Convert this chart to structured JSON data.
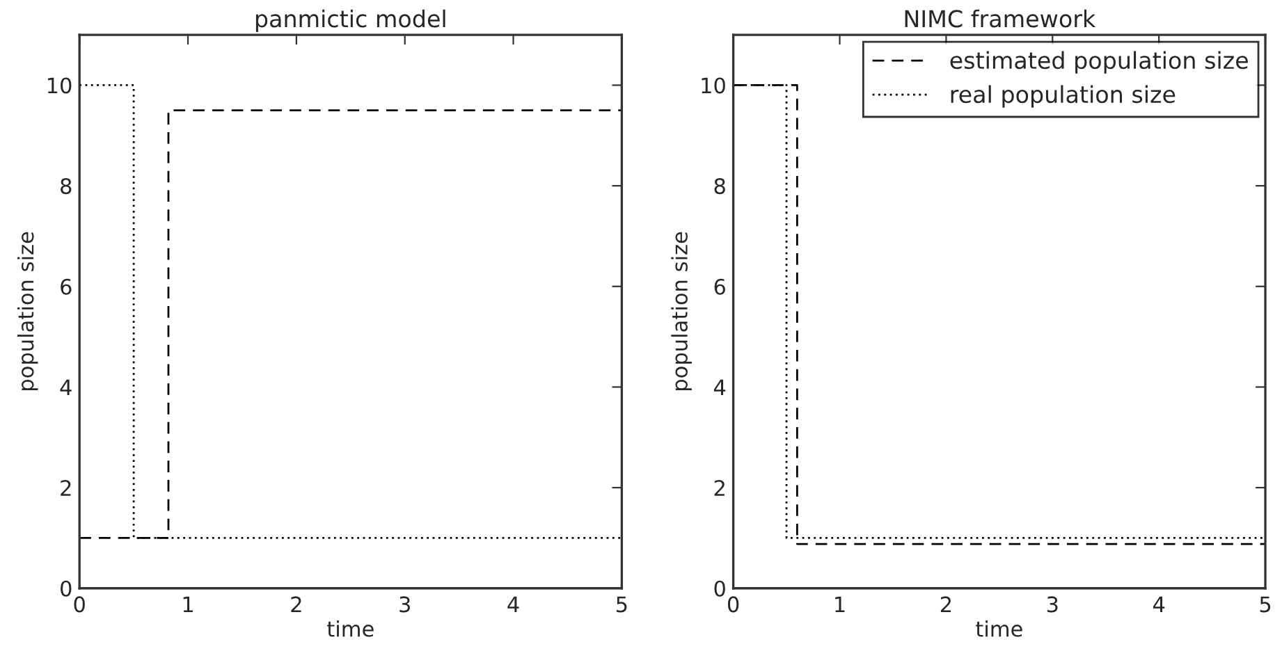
{
  "chart_data": [
    {
      "type": "step",
      "title": "panmictic model",
      "xlabel": "time",
      "ylabel": "population size",
      "xlim": [
        0,
        5
      ],
      "ylim": [
        0,
        11
      ],
      "xticks": [
        0,
        1,
        2,
        3,
        4,
        5
      ],
      "yticks": [
        0,
        2,
        4,
        6,
        8,
        10
      ],
      "legend": false,
      "grid": false,
      "series": [
        {
          "color": "#000000",
          "line_style": "dashed",
          "x": [
            0,
            0.82,
            5
          ],
          "values": [
            1,
            9.5,
            9.5
          ]
        },
        {
          "color": "#000000",
          "line_style": "dotted",
          "x": [
            0,
            0.5,
            5
          ],
          "values": [
            10,
            1,
            1
          ]
        }
      ]
    },
    {
      "type": "step",
      "title": "NIMC framework",
      "xlabel": "time",
      "ylabel": "population size",
      "xlim": [
        0,
        5
      ],
      "ylim": [
        0,
        11
      ],
      "xticks": [
        0,
        1,
        2,
        3,
        4,
        5
      ],
      "yticks": [
        0,
        2,
        4,
        6,
        8,
        10
      ],
      "legend": "top right",
      "grid": false,
      "series": [
        {
          "name": "estimated population size",
          "color": "#000000",
          "line_style": "dashed",
          "x": [
            0,
            0.6,
            5
          ],
          "values": [
            10,
            0.88,
            0.88
          ]
        },
        {
          "name": "real population size",
          "color": "#000000",
          "line_style": "dotted",
          "x": [
            0,
            0.5,
            5
          ],
          "values": [
            10,
            1,
            1
          ]
        }
      ]
    }
  ]
}
